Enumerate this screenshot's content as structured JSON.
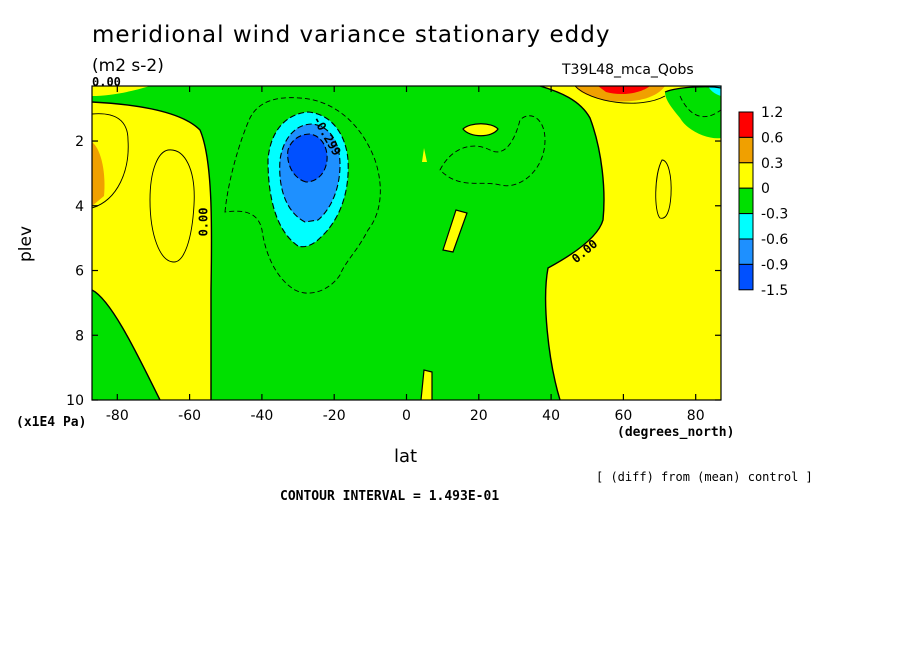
{
  "header": {
    "title": "meridional wind variance  stationary eddy",
    "units": "(m2 s-2)",
    "run_label": "T39L48_mca_Qobs"
  },
  "footer": {
    "diff_note": "[ (diff) from (mean) control ]",
    "contour_interval": "CONTOUR INTERVAL = 1.493E-01"
  },
  "chart_data": {
    "type": "heatmap",
    "title": "meridional wind variance  stationary eddy",
    "subtitle": "(m2 s-2)",
    "xlabel": "lat",
    "x_unit": "(degrees_north)",
    "ylabel": "plev",
    "y_unit": "(x1E4 Pa)",
    "xlim": [
      -87,
      87
    ],
    "ylim": [
      10,
      0.3
    ],
    "x_ticks": [
      -80,
      -60,
      -40,
      -20,
      0,
      20,
      40,
      60,
      80
    ],
    "x_tick_labels": [
      "-80",
      "-60",
      "-40",
      "-20",
      "0",
      "20",
      "40",
      "60",
      "80"
    ],
    "y_ticks": [
      2,
      4,
      6,
      8,
      10
    ],
    "y_tick_labels": [
      "2",
      "4",
      "6",
      "8",
      "10"
    ],
    "contour_labels": [
      {
        "text": "-0.299",
        "lat": -23,
        "plev": 1.9
      },
      {
        "text": "0.00",
        "lat": -55,
        "plev": 4.5
      },
      {
        "text": "0.00",
        "lat": 50,
        "plev": 5.5
      },
      {
        "text": "0.00",
        "lat": -83,
        "plev": 0.3
      }
    ],
    "colorbar": {
      "labels": [
        "1.2",
        "0.6",
        "0.3",
        "0",
        "-0.3",
        "-0.6",
        "-0.9",
        "-1.5"
      ],
      "colors": [
        "#ff0000",
        "#f0a000",
        "#ffff00",
        "#00e000",
        "#00ffff",
        "#1e90ff",
        "#0050ff"
      ]
    },
    "levels": [
      -1.5,
      -0.9,
      -0.6,
      -0.3,
      0,
      0.3,
      0.6,
      1.2
    ],
    "grid": false,
    "colors": {
      "red": "#ff0000",
      "orange": "#f0a000",
      "yellow": "#ffff00",
      "green": "#00e000",
      "cyan": "#00ffff",
      "mid_blue": "#1e90ff",
      "blue": "#0050ff"
    }
  }
}
